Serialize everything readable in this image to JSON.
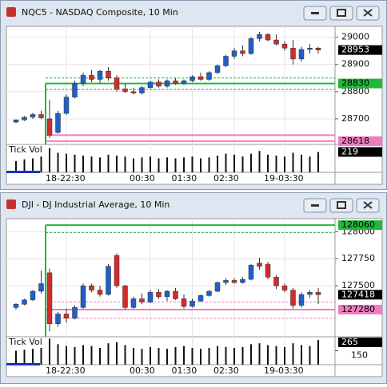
{
  "chart_data": [
    {
      "type": "candlestick",
      "title": "NQC5 - NASDAQ Composite, 10 Min",
      "categories": [
        null,
        null,
        null,
        null,
        null,
        null,
        "18-22:30",
        null,
        null,
        null,
        null,
        null,
        null,
        null,
        null,
        null,
        "00:30",
        null,
        null,
        null,
        null,
        "01:30",
        null,
        null,
        null,
        null,
        "02:30",
        null,
        null,
        null,
        null,
        null,
        "19-03:30",
        null,
        null,
        null,
        null
      ],
      "open": [
        28688,
        28696,
        28706,
        28716,
        28700,
        28650,
        28720,
        28780,
        28830,
        28860,
        28845,
        28875,
        28850,
        28810,
        28800,
        28795,
        28815,
        28835,
        28820,
        28840,
        28830,
        28840,
        28855,
        28845,
        28870,
        28895,
        28930,
        28950,
        28940,
        28995,
        29010,
        28990,
        28975,
        28960,
        28920,
        28955,
        28960
      ],
      "high": [
        28698,
        28710,
        28722,
        28730,
        28770,
        28730,
        28790,
        28840,
        28870,
        28880,
        28880,
        28890,
        28860,
        28830,
        28815,
        28820,
        28840,
        28845,
        28845,
        28850,
        28845,
        28860,
        28870,
        28875,
        28900,
        28935,
        28960,
        28970,
        29000,
        29020,
        29015,
        29010,
        28985,
        28990,
        28965,
        28975,
        28965
      ],
      "low": [
        28684,
        28692,
        28700,
        28700,
        28630,
        28645,
        28715,
        28775,
        28820,
        28835,
        28830,
        28840,
        28800,
        28795,
        28790,
        28790,
        28810,
        28815,
        28815,
        28825,
        28825,
        28835,
        28840,
        28840,
        28865,
        28890,
        28920,
        28930,
        28935,
        28985,
        28985,
        28970,
        28950,
        28900,
        28910,
        28940,
        28940
      ],
      "close": [
        28696,
        28706,
        28716,
        28704,
        28640,
        28720,
        28780,
        28830,
        28860,
        28845,
        28875,
        28850,
        28810,
        28800,
        28795,
        28815,
        28835,
        28820,
        28840,
        28830,
        28840,
        28855,
        28845,
        28870,
        28895,
        28930,
        28950,
        28940,
        28995,
        29010,
        28990,
        28975,
        28960,
        28920,
        28955,
        28960,
        28953
      ],
      "up_color": "#1f5fc8",
      "down_color": "#d42a2a",
      "ylim": [
        28606,
        29040
      ],
      "yticks": [
        28700,
        28800,
        28900,
        29000
      ],
      "levels": [
        {
          "value": 28850,
          "color": "#22b83a",
          "style": "dashed",
          "boxed": false
        },
        {
          "value": 28830,
          "color": "#22b83a",
          "style": "solid",
          "boxed": true
        },
        {
          "value": 28808,
          "color": "#22b83a",
          "style": "dashed",
          "boxed": false
        },
        {
          "value": 28640,
          "color": "#f07cc0",
          "style": "solid",
          "boxed": false
        },
        {
          "value": 28618,
          "color": "#f07cc0",
          "style": "solid",
          "boxed": true
        }
      ],
      "volume": {
        "name": "Tick Vol",
        "values": [
          120,
          140,
          150,
          170,
          260,
          210,
          200,
          190,
          180,
          170,
          160,
          190,
          180,
          170,
          150,
          160,
          170,
          150,
          160,
          150,
          160,
          170,
          150,
          160,
          180,
          200,
          190,
          170,
          200,
          230,
          190,
          180,
          170,
          210,
          190,
          170,
          219
        ],
        "ylim": [
          0,
          300
        ],
        "yticks": []
      }
    },
    {
      "type": "candlestick",
      "title": "DJI - DJ Industrial Average, 10 Min",
      "categories": [
        null,
        null,
        null,
        null,
        null,
        null,
        "18-22:30",
        null,
        null,
        null,
        null,
        null,
        null,
        null,
        null,
        null,
        "00:30",
        null,
        null,
        null,
        null,
        "01:30",
        null,
        null,
        null,
        null,
        "02:30",
        null,
        null,
        null,
        null,
        null,
        "19-03:30",
        null,
        null,
        null,
        null
      ],
      "open": [
        127300,
        127330,
        127370,
        127450,
        127620,
        127150,
        127240,
        127200,
        127300,
        127500,
        127460,
        127420,
        127780,
        127500,
        127300,
        127380,
        127350,
        127440,
        127400,
        127450,
        127380,
        127310,
        127360,
        127410,
        127450,
        127530,
        127550,
        127530,
        127560,
        127710,
        127700,
        127580,
        127500,
        127460,
        127320,
        127420,
        127440
      ],
      "high": [
        127340,
        127380,
        127460,
        127640,
        127660,
        127260,
        127290,
        127320,
        127520,
        127520,
        127500,
        127700,
        127800,
        127510,
        127400,
        127430,
        127460,
        127470,
        127460,
        127480,
        127420,
        127380,
        127420,
        127460,
        127540,
        127570,
        127570,
        127580,
        127700,
        127760,
        127720,
        127600,
        127520,
        127480,
        127440,
        127460,
        127480
      ],
      "low": [
        127280,
        127320,
        127360,
        127430,
        127080,
        127120,
        127160,
        127190,
        127290,
        127440,
        127400,
        127410,
        127480,
        127280,
        127290,
        127330,
        127340,
        127380,
        127360,
        127370,
        127290,
        127300,
        127350,
        127400,
        127440,
        127510,
        127520,
        127520,
        127550,
        127650,
        127560,
        127470,
        127440,
        127290,
        127300,
        127390,
        127330
      ],
      "close": [
        127330,
        127370,
        127450,
        127520,
        127150,
        127240,
        127200,
        127300,
        127500,
        127460,
        127420,
        127680,
        127500,
        127300,
        127380,
        127350,
        127440,
        127400,
        127450,
        127380,
        127310,
        127360,
        127410,
        127450,
        127530,
        127550,
        127530,
        127560,
        127690,
        127680,
        127580,
        127500,
        127460,
        127320,
        127420,
        127440,
        127418
      ],
      "up_color": "#1f5fc8",
      "down_color": "#d42a2a",
      "ylim": [
        127030,
        128120
      ],
      "yticks": [
        127500,
        127750,
        128000
      ],
      "levels": [
        {
          "value": 128060,
          "color": "#22b83a",
          "style": "solid",
          "boxed": true
        },
        {
          "value": 127990,
          "color": "#22b83a",
          "style": "dashed",
          "boxed": false
        },
        {
          "value": 127350,
          "color": "#f07cc0",
          "style": "dashed",
          "boxed": false
        },
        {
          "value": 127280,
          "color": "#f07cc0",
          "style": "solid",
          "boxed": true
        },
        {
          "value": 127200,
          "color": "#f07cc0",
          "style": "dashed",
          "boxed": false
        }
      ],
      "volume": {
        "name": "Tick Vol",
        "values": [
          150,
          160,
          170,
          180,
          280,
          220,
          200,
          190,
          210,
          200,
          180,
          230,
          240,
          210,
          180,
          170,
          190,
          180,
          170,
          190,
          200,
          180,
          170,
          180,
          200,
          190,
          180,
          190,
          220,
          230,
          210,
          200,
          190,
          230,
          210,
          200,
          265
        ],
        "ylim": [
          0,
          300
        ],
        "yticks": [
          150
        ]
      }
    }
  ]
}
